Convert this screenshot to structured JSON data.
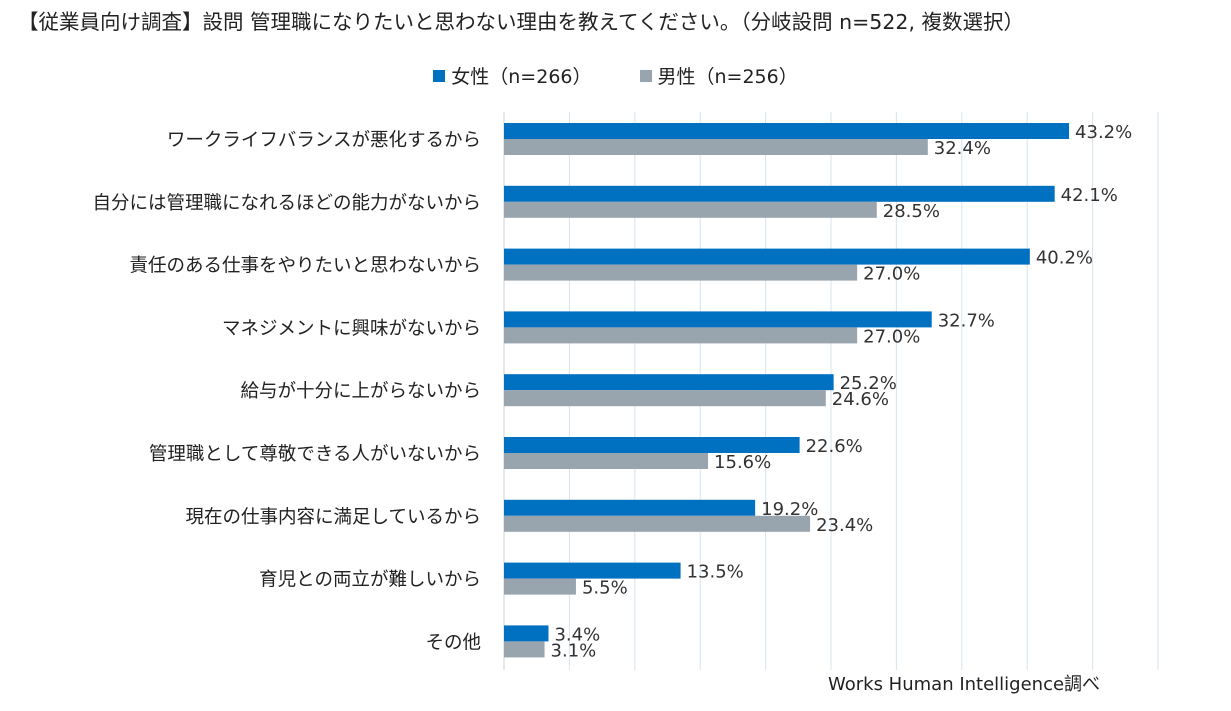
{
  "header": {
    "title": "【従業員向け調査】設問 管理職になりたいと思わない理由を教えてください。（分岐設問 n=522, 複数選択）"
  },
  "colors": {
    "female": "#0070C0",
    "male": "#98A4AE",
    "grid": "#D6E4F0"
  },
  "chart_data": {
    "type": "bar",
    "orientation": "horizontal",
    "title": "【従業員向け調査】設問 管理職になりたいと思わない理由を教えてください。（分岐設問 n=522, 複数選択）",
    "categories": [
      "ワークライフバランスが悪化するから",
      "自分には管理職になれるほどの能力がないから",
      "責任のある仕事をやりたいと思わないから",
      "マネジメントに興味がないから",
      "給与が十分に上がらないから",
      "管理職として尊敬できる人がいないから",
      "現在の仕事内容に満足しているから",
      "育児との両立が難しいから",
      "その他"
    ],
    "series": [
      {
        "name": "女性（n=266）",
        "values": [
          43.2,
          42.1,
          40.2,
          32.7,
          25.2,
          22.6,
          19.2,
          13.5,
          3.4
        ],
        "labels": [
          "43.2%",
          "42.1%",
          "40.2%",
          "32.7%",
          "25.2%",
          "22.6%",
          "19.2%",
          "13.5%",
          "3.4%"
        ]
      },
      {
        "name": "男性（n=256）",
        "values": [
          32.4,
          28.5,
          27.0,
          27.0,
          24.6,
          15.6,
          23.4,
          5.5,
          3.1
        ],
        "labels": [
          "32.4%",
          "28.5%",
          "27.0%",
          "27.0%",
          "24.6%",
          "15.6%",
          "23.4%",
          "5.5%",
          "3.1%"
        ]
      }
    ],
    "xlim": [
      0,
      50
    ],
    "grid": true,
    "legend": "top-center",
    "unit": "%"
  },
  "footer": {
    "source": "Works Human Intelligence調べ"
  }
}
